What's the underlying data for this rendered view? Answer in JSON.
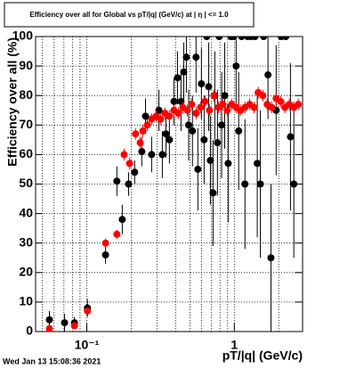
{
  "chart_data": {
    "type": "scatter",
    "title": "Efficiency over all for Global vs pT/|q| (GeV/c) at | η | <= 1.0",
    "x_label": "pT/|q| (GeV/c)",
    "y_label": "Efficiency over all (%)",
    "timestamp": "Wed Jan 13 15:08:36 2021",
    "xlog": true,
    "xlim": [
      0.045,
      2.9
    ],
    "ylim": [
      0,
      100
    ],
    "xticks": [
      {
        "value": 0.1,
        "label": "10⁻¹"
      },
      1
    ],
    "xgrid": [
      0.05,
      0.06,
      0.07,
      0.08,
      0.09,
      0.1,
      0.2,
      0.3,
      0.4,
      0.5,
      0.6,
      0.7,
      0.8,
      0.9,
      1,
      2
    ],
    "yticks": [
      0,
      10,
      20,
      30,
      40,
      50,
      60,
      70,
      80,
      90,
      100
    ],
    "grid": true,
    "series": [
      {
        "color": "#000000",
        "x": [
          0.0558,
          0.0707,
          0.0825,
          0.101,
          0.134,
          0.16,
          0.174,
          0.192,
          0.211,
          0.236,
          0.25,
          0.275,
          0.308,
          0.325,
          0.344,
          0.363,
          0.39,
          0.412,
          0.435,
          0.454,
          0.473,
          0.49,
          0.52,
          0.55,
          0.566,
          0.598,
          0.624,
          0.65,
          0.67,
          0.688,
          0.717,
          0.737,
          0.768,
          0.79,
          0.82,
          0.86,
          0.908,
          0.946,
          0.986,
          1.028,
          1.07,
          1.12,
          1.18,
          1.23,
          1.3,
          1.38,
          1.43,
          1.5,
          1.58,
          1.69,
          1.77,
          1.92,
          2.08,
          2.23,
          2.4,
          2.53
        ],
        "values": [
          4,
          3,
          3,
          8,
          26,
          51,
          38,
          50,
          54,
          61,
          73,
          60,
          75,
          60,
          67,
          65,
          78,
          86,
          78,
          88,
          93,
          70,
          68,
          93,
          55,
          84,
          65,
          100,
          83,
          58,
          47,
          80,
          64,
          100,
          70,
          80,
          57,
          100,
          100,
          90,
          68,
          100,
          50,
          100,
          100,
          100,
          57,
          50,
          100,
          87,
          25,
          75,
          100,
          100,
          66,
          50
        ],
        "errors": [
          3,
          3,
          2,
          3,
          3,
          5,
          5,
          4,
          4,
          5,
          6,
          6,
          7,
          8,
          8,
          8,
          8,
          9,
          10,
          10,
          12,
          12,
          12,
          12,
          14,
          12,
          15,
          0,
          15,
          15,
          18,
          15,
          18,
          0,
          18,
          18,
          20,
          0,
          0,
          15,
          20,
          0,
          22,
          0,
          0,
          0,
          25,
          25,
          0,
          15,
          25,
          22,
          0,
          0,
          25,
          25
        ]
      },
      {
        "color": "#ff0000",
        "x": [
          0.0558,
          0.0825,
          0.101,
          0.134,
          0.16,
          0.179,
          0.195,
          0.214,
          0.23,
          0.24,
          0.257,
          0.275,
          0.295,
          0.316,
          0.338,
          0.363,
          0.389,
          0.417,
          0.447,
          0.48,
          0.514,
          0.551,
          0.59,
          0.633,
          0.678,
          0.727,
          0.779,
          0.835,
          0.895,
          0.959,
          1.028,
          1.1,
          1.18,
          1.27,
          1.36,
          1.45,
          1.56,
          1.67,
          1.79,
          1.92,
          2.06,
          2.2,
          2.36,
          2.53,
          2.71
        ],
        "values": [
          1,
          2,
          7,
          30,
          33,
          60,
          57,
          67,
          64,
          68,
          70,
          72,
          73,
          72,
          74,
          73,
          75,
          74,
          76,
          75,
          77,
          74,
          76,
          78,
          75,
          80,
          76,
          77,
          75,
          77,
          76,
          75,
          76,
          77,
          76,
          81,
          80,
          77,
          76,
          79,
          78,
          76,
          77,
          76,
          77
        ],
        "errors": [
          1,
          1,
          1,
          1.5,
          1.5,
          2,
          2,
          2,
          2,
          2,
          2,
          2,
          2,
          2,
          2,
          2,
          2,
          2,
          2,
          2,
          2,
          2,
          2,
          2,
          2,
          2,
          2,
          2,
          2,
          2,
          2,
          2,
          2,
          2,
          2,
          2,
          2,
          2,
          2,
          2,
          2,
          2,
          2,
          2,
          2
        ]
      }
    ]
  }
}
